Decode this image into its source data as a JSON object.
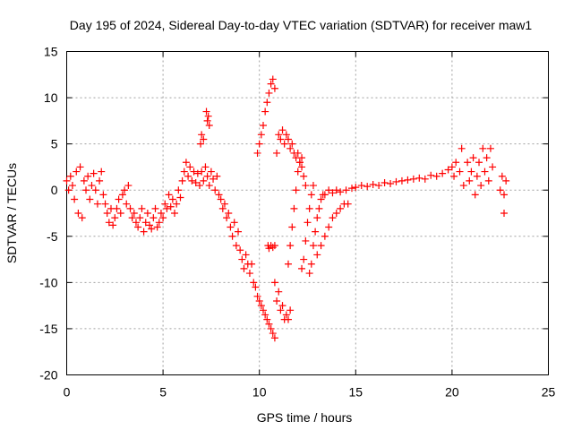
{
  "chart_data": {
    "type": "scatter",
    "title": "Day 195 of 2024, Sidereal Day-to-day VTEC variation (SDTVAR) for receiver maw1",
    "xlabel": "GPS time / hours",
    "ylabel": "SDTVAR / TECUs",
    "xlim": [
      0,
      25
    ],
    "ylim": [
      -20,
      15
    ],
    "xticks": [
      0,
      5,
      10,
      15,
      20,
      25
    ],
    "xtick_labels": [
      "0",
      "5",
      "10",
      "15",
      "20",
      "25"
    ],
    "yticks": [
      -20,
      -15,
      -10,
      -5,
      0,
      5,
      10,
      15
    ],
    "ytick_labels": [
      "-20",
      "-15",
      "-10",
      "-5",
      "0",
      "5",
      "10",
      "15"
    ],
    "grid": true,
    "marker": "+",
    "series_color": "#ff0000",
    "series": [
      {
        "name": "maw1",
        "points": [
          [
            0.0,
            1.0
          ],
          [
            0.1,
            0.0
          ],
          [
            0.2,
            1.5
          ],
          [
            0.3,
            0.5
          ],
          [
            0.4,
            -1.0
          ],
          [
            0.5,
            2.0
          ],
          [
            0.6,
            -2.5
          ],
          [
            0.7,
            2.5
          ],
          [
            0.8,
            -3.0
          ],
          [
            0.9,
            1.0
          ],
          [
            1.0,
            0.0
          ],
          [
            1.1,
            1.5
          ],
          [
            1.2,
            -1.0
          ],
          [
            1.3,
            0.5
          ],
          [
            1.4,
            1.8
          ],
          [
            1.5,
            0.0
          ],
          [
            1.6,
            -1.5
          ],
          [
            1.7,
            1.0
          ],
          [
            1.8,
            2.0
          ],
          [
            1.9,
            -0.5
          ],
          [
            2.0,
            -1.5
          ],
          [
            2.1,
            -2.5
          ],
          [
            2.2,
            -3.5
          ],
          [
            2.3,
            -2.0
          ],
          [
            2.4,
            -3.8
          ],
          [
            2.5,
            -3.0
          ],
          [
            2.6,
            -2.0
          ],
          [
            2.7,
            -1.0
          ],
          [
            2.8,
            -2.5
          ],
          [
            2.9,
            -0.5
          ],
          [
            3.0,
            0.0
          ],
          [
            3.1,
            -1.5
          ],
          [
            3.2,
            0.5
          ],
          [
            3.3,
            -2.0
          ],
          [
            3.4,
            -3.0
          ],
          [
            3.5,
            -2.5
          ],
          [
            3.6,
            -3.5
          ],
          [
            3.7,
            -4.0
          ],
          [
            3.8,
            -3.0
          ],
          [
            3.9,
            -2.0
          ],
          [
            4.0,
            -4.5
          ],
          [
            4.1,
            -3.5
          ],
          [
            4.2,
            -2.5
          ],
          [
            4.3,
            -3.8
          ],
          [
            4.4,
            -4.2
          ],
          [
            4.5,
            -3.0
          ],
          [
            4.6,
            -2.0
          ],
          [
            4.7,
            -4.0
          ],
          [
            4.8,
            -3.5
          ],
          [
            4.9,
            -2.5
          ],
          [
            5.0,
            -3.0
          ],
          [
            5.1,
            -1.5
          ],
          [
            5.2,
            -2.0
          ],
          [
            5.3,
            -0.5
          ],
          [
            5.4,
            -1.8
          ],
          [
            5.5,
            -1.0
          ],
          [
            5.6,
            -2.5
          ],
          [
            5.7,
            -1.5
          ],
          [
            5.8,
            0.0
          ],
          [
            5.9,
            -0.8
          ],
          [
            6.0,
            1.0
          ],
          [
            6.1,
            2.0
          ],
          [
            6.2,
            3.0
          ],
          [
            6.3,
            1.5
          ],
          [
            6.4,
            2.5
          ],
          [
            6.5,
            1.0
          ],
          [
            6.6,
            2.0
          ],
          [
            6.7,
            0.8
          ],
          [
            6.8,
            1.8
          ],
          [
            6.9,
            0.5
          ],
          [
            7.0,
            2.0
          ],
          [
            7.1,
            1.0
          ],
          [
            7.2,
            2.5
          ],
          [
            7.3,
            1.5
          ],
          [
            7.4,
            0.5
          ],
          [
            7.5,
            2.0
          ],
          [
            7.6,
            1.2
          ],
          [
            7.7,
            0.0
          ],
          [
            7.8,
            1.5
          ],
          [
            7.9,
            -0.5
          ],
          [
            6.95,
            5.0
          ],
          [
            7.0,
            6.0
          ],
          [
            7.1,
            5.5
          ],
          [
            7.25,
            8.5
          ],
          [
            7.3,
            7.5
          ],
          [
            7.35,
            8.0
          ],
          [
            7.4,
            7.0
          ],
          [
            8.0,
            -1.0
          ],
          [
            8.1,
            -2.0
          ],
          [
            8.2,
            -1.5
          ],
          [
            8.3,
            -3.0
          ],
          [
            8.4,
            -2.5
          ],
          [
            8.5,
            -4.0
          ],
          [
            8.6,
            -5.0
          ],
          [
            8.7,
            -3.5
          ],
          [
            8.8,
            -6.0
          ],
          [
            8.9,
            -4.5
          ],
          [
            9.0,
            -6.5
          ],
          [
            9.1,
            -7.5
          ],
          [
            9.2,
            -8.5
          ],
          [
            9.3,
            -7.0
          ],
          [
            9.4,
            -8.0
          ],
          [
            9.5,
            -9.0
          ],
          [
            9.6,
            -8.0
          ],
          [
            9.7,
            -10.0
          ],
          [
            9.8,
            -10.5
          ],
          [
            9.9,
            -11.5
          ],
          [
            10.0,
            -12.0
          ],
          [
            10.1,
            -12.5
          ],
          [
            10.2,
            -13.0
          ],
          [
            10.3,
            -13.5
          ],
          [
            10.4,
            -14.0
          ],
          [
            10.5,
            -14.5
          ],
          [
            10.6,
            -15.0
          ],
          [
            10.7,
            -15.5
          ],
          [
            10.8,
            -16.0
          ],
          [
            9.9,
            4.0
          ],
          [
            10.0,
            5.0
          ],
          [
            10.1,
            6.0
          ],
          [
            10.2,
            7.0
          ],
          [
            10.3,
            8.5
          ],
          [
            10.4,
            9.5
          ],
          [
            10.5,
            10.5
          ],
          [
            10.6,
            11.5
          ],
          [
            10.7,
            12.0
          ],
          [
            10.8,
            11.0
          ],
          [
            10.45,
            -6.0
          ],
          [
            10.5,
            -6.3
          ],
          [
            10.6,
            -6.0
          ],
          [
            10.7,
            -6.2
          ],
          [
            10.8,
            -6.0
          ],
          [
            10.9,
            4.0
          ],
          [
            11.0,
            6.0
          ],
          [
            11.1,
            5.5
          ],
          [
            11.2,
            6.5
          ],
          [
            11.3,
            5.0
          ],
          [
            11.4,
            6.0
          ],
          [
            11.5,
            5.5
          ],
          [
            11.6,
            4.5
          ],
          [
            11.7,
            5.0
          ],
          [
            11.8,
            4.0
          ],
          [
            11.9,
            3.5
          ],
          [
            12.0,
            4.0
          ],
          [
            12.1,
            3.0
          ],
          [
            12.2,
            2.5
          ],
          [
            12.3,
            1.5
          ],
          [
            12.4,
            0.5
          ],
          [
            10.8,
            -10.0
          ],
          [
            10.9,
            -12.0
          ],
          [
            11.0,
            -11.0
          ],
          [
            11.1,
            -13.0
          ],
          [
            11.2,
            -12.5
          ],
          [
            11.3,
            -14.0
          ],
          [
            11.4,
            -13.5
          ],
          [
            11.5,
            -14.0
          ],
          [
            11.6,
            -13.0
          ],
          [
            11.5,
            -8.0
          ],
          [
            11.6,
            -6.0
          ],
          [
            11.7,
            -4.0
          ],
          [
            11.8,
            -2.0
          ],
          [
            11.9,
            0.0
          ],
          [
            12.0,
            2.0
          ],
          [
            12.1,
            3.0
          ],
          [
            12.2,
            3.5
          ],
          [
            12.2,
            -8.5
          ],
          [
            12.3,
            -7.5
          ],
          [
            12.4,
            -5.5
          ],
          [
            12.5,
            -3.5
          ],
          [
            12.6,
            -2.0
          ],
          [
            12.7,
            -0.5
          ],
          [
            12.8,
            0.5
          ],
          [
            12.6,
            -9.0
          ],
          [
            12.7,
            -8.0
          ],
          [
            12.8,
            -6.0
          ],
          [
            12.9,
            -4.5
          ],
          [
            13.0,
            -3.0
          ],
          [
            13.1,
            -2.0
          ],
          [
            13.2,
            -1.0
          ],
          [
            13.3,
            -0.5
          ],
          [
            13.0,
            -7.0
          ],
          [
            13.2,
            -6.0
          ],
          [
            13.4,
            -5.0
          ],
          [
            13.6,
            -4.0
          ],
          [
            13.8,
            -3.0
          ],
          [
            14.0,
            -2.5
          ],
          [
            14.2,
            -2.0
          ],
          [
            14.4,
            -1.5
          ],
          [
            14.6,
            -1.5
          ],
          [
            13.4,
            -0.5
          ],
          [
            13.6,
            0.0
          ],
          [
            13.8,
            -0.3
          ],
          [
            14.0,
            0.0
          ],
          [
            14.2,
            -0.2
          ],
          [
            14.5,
            0.0
          ],
          [
            14.8,
            0.2
          ],
          [
            15.0,
            0.3
          ],
          [
            15.3,
            0.5
          ],
          [
            15.6,
            0.4
          ],
          [
            15.9,
            0.6
          ],
          [
            16.2,
            0.5
          ],
          [
            16.5,
            0.8
          ],
          [
            16.8,
            0.7
          ],
          [
            17.1,
            0.9
          ],
          [
            17.4,
            1.0
          ],
          [
            17.7,
            1.1
          ],
          [
            18.0,
            1.2
          ],
          [
            18.3,
            1.3
          ],
          [
            18.6,
            1.2
          ],
          [
            18.9,
            1.6
          ],
          [
            19.2,
            1.5
          ],
          [
            19.5,
            1.8
          ],
          [
            19.8,
            2.2
          ],
          [
            20.0,
            2.5
          ],
          [
            20.1,
            1.5
          ],
          [
            20.2,
            3.0
          ],
          [
            20.4,
            2.0
          ],
          [
            20.5,
            4.5
          ],
          [
            20.6,
            0.5
          ],
          [
            20.8,
            3.0
          ],
          [
            20.9,
            1.0
          ],
          [
            21.0,
            2.0
          ],
          [
            21.1,
            3.5
          ],
          [
            21.2,
            -0.5
          ],
          [
            21.3,
            1.5
          ],
          [
            21.4,
            3.0
          ],
          [
            21.5,
            0.5
          ],
          [
            21.6,
            4.5
          ],
          [
            21.7,
            2.0
          ],
          [
            21.8,
            3.5
          ],
          [
            21.9,
            1.0
          ],
          [
            22.0,
            4.5
          ],
          [
            22.1,
            2.5
          ],
          [
            22.5,
            0.0
          ],
          [
            22.6,
            1.5
          ],
          [
            22.7,
            -0.5
          ],
          [
            22.8,
            1.0
          ],
          [
            22.7,
            -2.5
          ]
        ]
      }
    ]
  }
}
